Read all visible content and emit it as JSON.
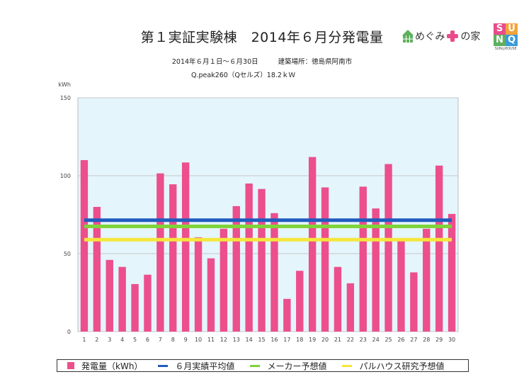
{
  "header": {
    "title": "第１実証実験棟　2014年６月分発電量",
    "period": "2014年６月１日～６月30日",
    "location": "建築場所：徳島県阿南市",
    "spec": "Q.peak260（Qセルズ）18.2ｋＷ",
    "logo1_text_a": "めぐみ",
    "logo1_text_b": "の家",
    "logo2_letters": [
      "S",
      "U",
      "N",
      "Q"
    ],
    "logo2_caption": "SUN◎HOUSE"
  },
  "colors": {
    "bar": "#ec4f8c",
    "avg_line": "#1f5cbf",
    "maker_line": "#7fd33a",
    "palhaus_line": "#f5e63c",
    "plot_bg": "#e4f5fc",
    "logo1_roof": "#5db05d",
    "logo1_plus": "#e84c8b",
    "logo2": [
      "#e84c8b",
      "#f4a43a",
      "#5db05d",
      "#3b9ad8"
    ]
  },
  "chart_data": {
    "type": "bar",
    "ylabel": "kWh",
    "ylim": [
      0,
      150
    ],
    "yticks": [
      0,
      50,
      100,
      150
    ],
    "grid": true,
    "categories": [
      "1",
      "2",
      "3",
      "4",
      "5",
      "6",
      "7",
      "8",
      "9",
      "10",
      "11",
      "12",
      "13",
      "14",
      "15",
      "16",
      "17",
      "18",
      "19",
      "20",
      "21",
      "22",
      "23",
      "24",
      "25",
      "26",
      "27",
      "28",
      "29",
      "30"
    ],
    "series": [
      {
        "name": "発電量（kWh）",
        "type": "bar",
        "values": [
          110,
          80,
          46,
          41.5,
          30.5,
          36.5,
          101.5,
          94.5,
          108.5,
          60.5,
          47,
          66,
          80.5,
          95,
          91.5,
          76,
          21,
          39,
          112,
          92.5,
          41.5,
          31,
          93,
          79,
          107.5,
          58.5,
          38,
          66,
          106.5,
          75.5
        ]
      },
      {
        "name": "６月実績平均値",
        "type": "line",
        "value": 71.5
      },
      {
        "name": "メーカー予想値",
        "type": "line",
        "value": 67.5
      },
      {
        "name": "パルハウス研究予想値",
        "type": "line",
        "value": 59
      }
    ],
    "legend_position": "bottom"
  }
}
